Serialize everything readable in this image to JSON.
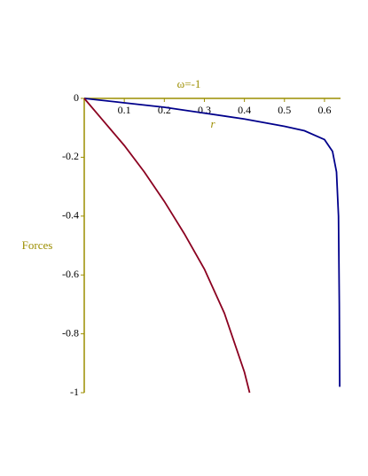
{
  "chart_data": {
    "type": "line",
    "title": "ω=-1",
    "x_label": "r",
    "y_label": "Forces",
    "xlim": [
      0,
      0.64
    ],
    "ylim": [
      -1,
      0
    ],
    "xticks": [
      0.1,
      0.2,
      0.3,
      0.4,
      0.5,
      0.6
    ],
    "yticks": [
      0,
      -0.2,
      -0.4,
      -0.6,
      -0.8,
      -1
    ],
    "axis_color": "#9c8e00",
    "series": [
      {
        "color": "#00008b",
        "x": [
          0,
          0.1,
          0.2,
          0.3,
          0.4,
          0.5,
          0.55,
          0.6,
          0.62,
          0.63,
          0.635,
          0.637,
          0.638
        ],
        "values": [
          0,
          -0.015,
          -0.03,
          -0.05,
          -0.07,
          -0.095,
          -0.11,
          -0.14,
          -0.18,
          -0.25,
          -0.4,
          -0.7,
          -0.98
        ]
      },
      {
        "color": "#8b0020",
        "x": [
          0,
          0.05,
          0.1,
          0.15,
          0.2,
          0.25,
          0.3,
          0.35,
          0.4,
          0.413
        ],
        "values": [
          0,
          -0.08,
          -0.16,
          -0.25,
          -0.35,
          -0.46,
          -0.58,
          -0.73,
          -0.93,
          -1
        ]
      }
    ]
  }
}
